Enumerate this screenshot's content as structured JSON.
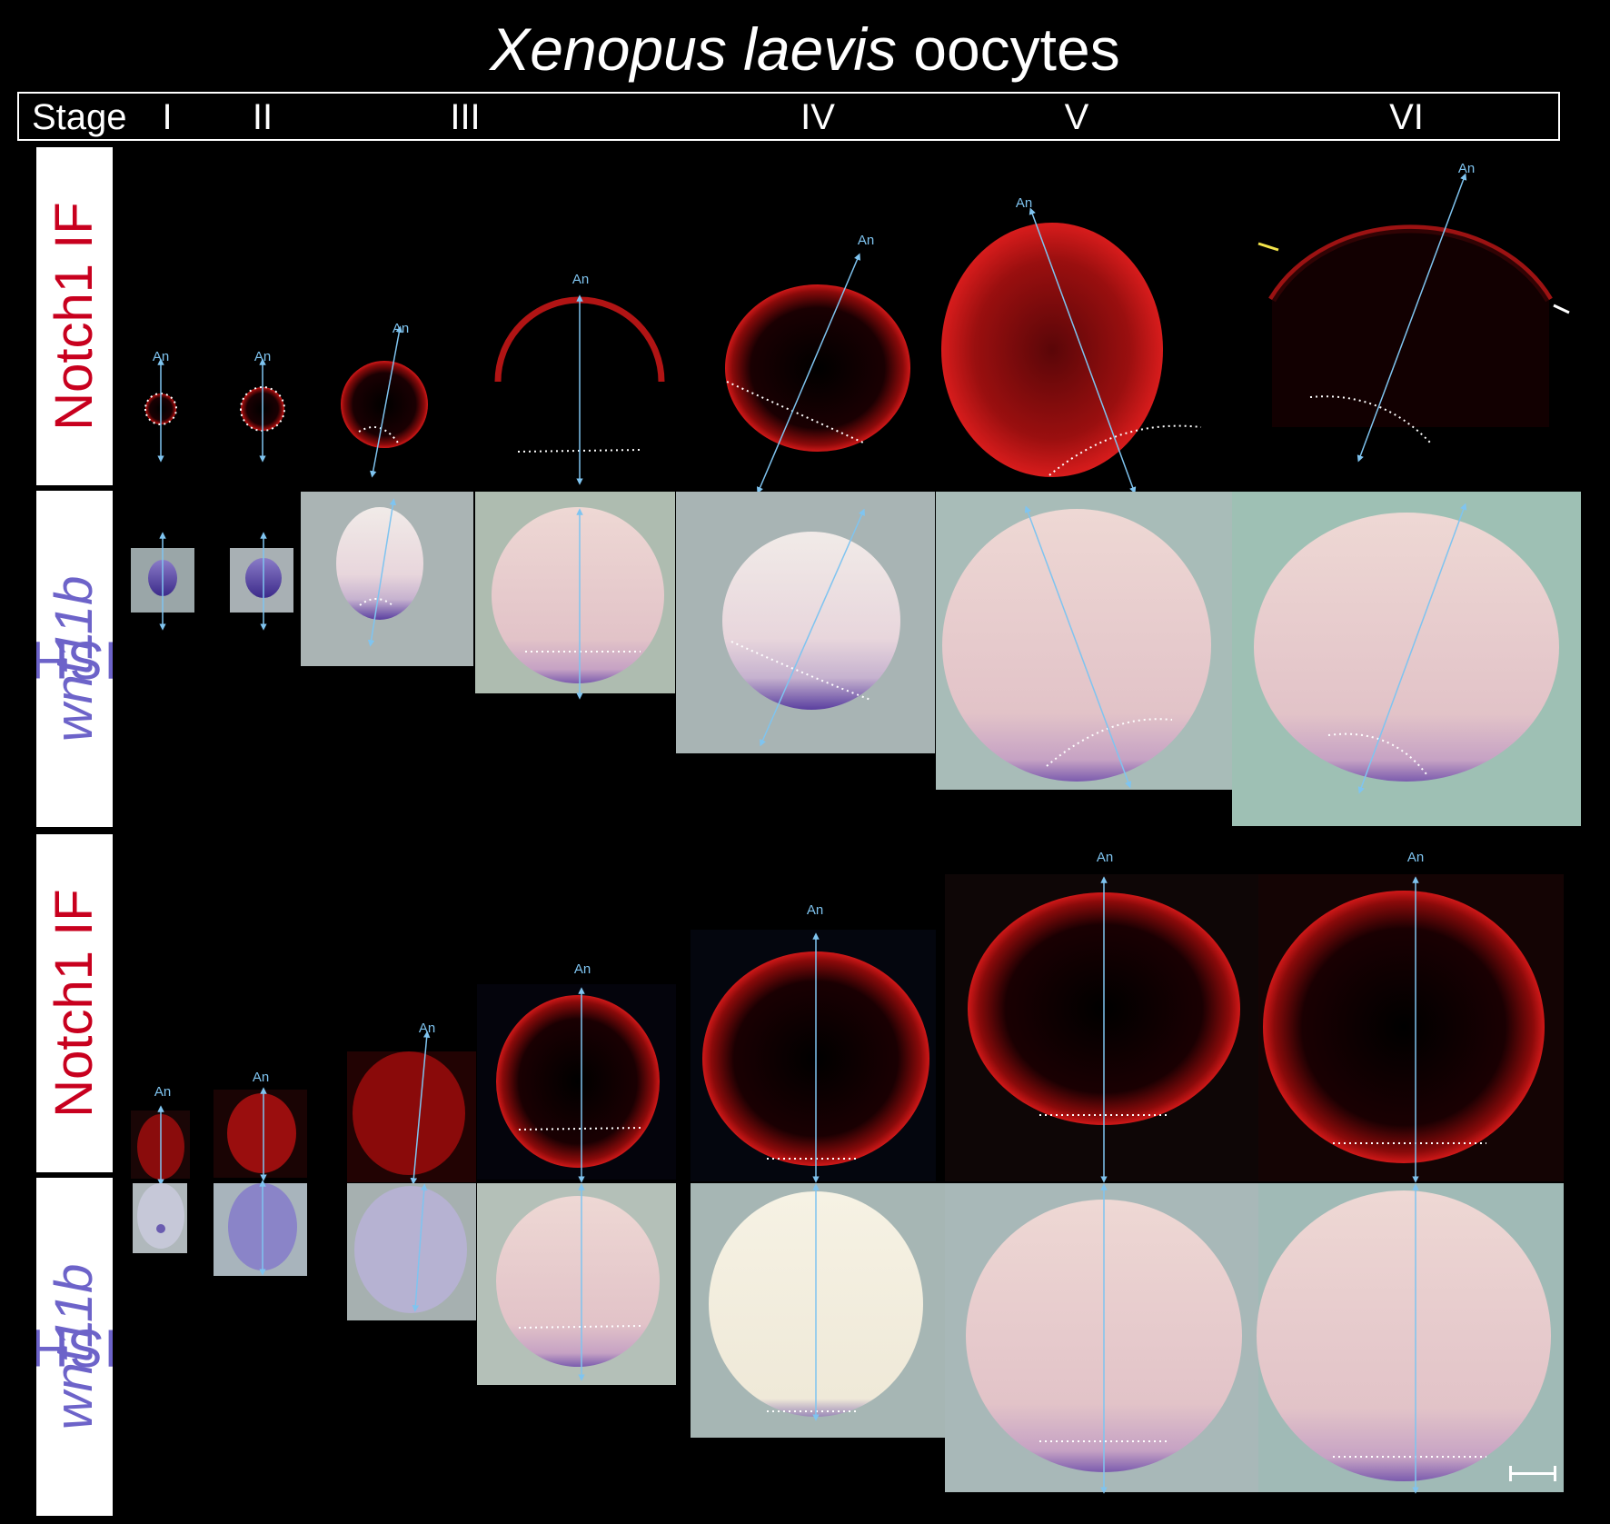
{
  "title": {
    "italic": "Xenopus laevis",
    "plain": " oocytes"
  },
  "stage_row": {
    "stage_word": "Stage",
    "stages": [
      "I",
      "II",
      "III",
      "IV",
      "V",
      "VI"
    ]
  },
  "row_labels": {
    "notch_if": "Notch1 IF",
    "wnt_italic": "wnt11b",
    "wnt_plain": " ISH"
  },
  "axis_label": "An",
  "colors": {
    "notch_label": "#c8001e",
    "wnt_label": "#6d63c9",
    "axis_arrow": "#7fc4f0",
    "if_stain": "#d01818",
    "ish_stain": "#5a3fa0",
    "yellow_arrow": "#f2e34a",
    "white_arrow": "#ffffff"
  }
}
